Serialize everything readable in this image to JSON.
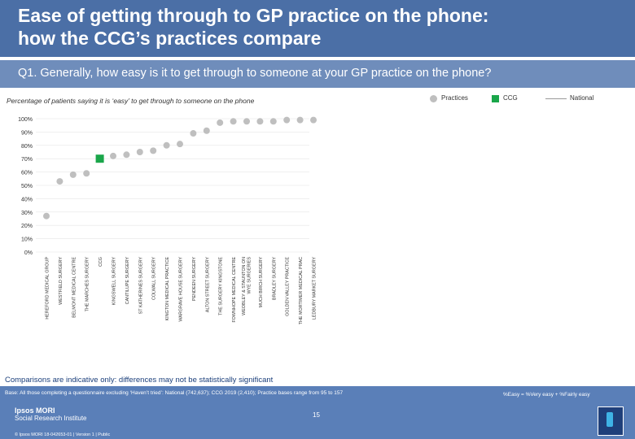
{
  "header": {
    "title": "Ease of getting through to GP practice on the phone:\nhow the CCG’s practices compare"
  },
  "question": "Q1. Generally, how easy is it to get through to someone at your GP practice on the phone?",
  "subtitle": "Percentage of patients saying it is ‘easy’ to get through to someone on the phone",
  "legend": {
    "practices": "Practices",
    "ccg": "CCG",
    "national": "National"
  },
  "colors": {
    "practice": "#bfbfbf",
    "ccg": "#1aa64a",
    "header": "#4b6fa6",
    "question_bar": "#6f8dbb",
    "footer": "#5a7fb8"
  },
  "chart_data": {
    "type": "scatter",
    "ylim": [
      0,
      100
    ],
    "yticks": [
      0,
      10,
      20,
      30,
      40,
      50,
      60,
      70,
      80,
      90,
      100
    ],
    "ytick_labels": [
      "0%",
      "10%",
      "20%",
      "30%",
      "40%",
      "50%",
      "60%",
      "70%",
      "80%",
      "90%",
      "100%"
    ],
    "categories": [
      "HEREFORD MEDICAL GROUP",
      "WESTFIELD SURGERY",
      "BELMONT MEDICAL CENTRE",
      "THE MARCHES SURGERY",
      "CCG",
      "KINGSWELL SURGERY",
      "CANTILUPE SURGERY",
      "ST KATHERINES SURGERY",
      "COLWALL SURGERY",
      "KINGTON MEDICAL PRACTICE",
      "WARGRAVE HOUSE SURGERY",
      "PENDEEN SURGERY",
      "ALTON STREET SURGERY",
      "THE SURGERY KINGSTONE",
      "FOWNHOPE MEDICAL CENTRE",
      "WEOBLEY & STAUNTON ON WYE SURGERIES",
      "MUCH BIRCH SURGERY",
      "BRADLEY SURGERY",
      "GOLDEN VALLEY PRACTICE",
      "THE MORTIMER MEDICAL PRAC",
      "LEDBURY MARKET SURGERY"
    ],
    "values": [
      27,
      53,
      58,
      59,
      70,
      72,
      73,
      75,
      76,
      80,
      81,
      89,
      91,
      97,
      98,
      98,
      98,
      98,
      99,
      99,
      99
    ],
    "ccg_index": 4
  },
  "footnote": "Comparisons are indicative only: differences may not be statistically significant",
  "footer": {
    "base": "Base: All those completing a questionnaire excluding ‘Haven’t tried’: National (742,637); CCG 2019 (2,410); Practice bases range from 95 to 157",
    "easy_definition": "%Easy = %Very easy + %Fairly easy",
    "logo_line1": "Ipsos MORI",
    "logo_line2": "Social Research Institute",
    "page_number": "15",
    "copyright": "© Ipsos MORI     18-042653-01 | Version 1 | Public"
  }
}
